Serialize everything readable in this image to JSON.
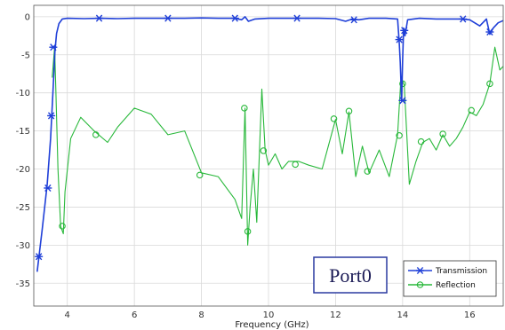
{
  "chart_data": {
    "type": "line",
    "title": "",
    "xlabel": "Frequency (GHz)",
    "ylabel": "",
    "xlim": [
      3,
      17
    ],
    "ylim": [
      -38,
      1.5
    ],
    "x_ticks": [
      4,
      6,
      8,
      10,
      12,
      14,
      16
    ],
    "y_ticks": [
      0,
      -5,
      -10,
      -15,
      -20,
      -25,
      -30,
      -35
    ],
    "grid": true,
    "legend_position": "bottom-right",
    "annotation": "Port0",
    "series": [
      {
        "name": "Transmission",
        "color": "#1f3fd8",
        "marker": "asterisk",
        "x": [
          3.1,
          3.25,
          3.4,
          3.5,
          3.57,
          3.63,
          3.68,
          3.75,
          3.85,
          4.0,
          4.5,
          5.0,
          5.5,
          6.0,
          6.5,
          7.0,
          7.5,
          8.0,
          8.5,
          9.0,
          9.2,
          9.3,
          9.4,
          9.6,
          10.0,
          10.5,
          10.85,
          11.5,
          12.0,
          12.3,
          12.5,
          12.7,
          13.0,
          13.5,
          13.85,
          13.9,
          13.93,
          13.97,
          14.0,
          14.03,
          14.07,
          14.15,
          14.5,
          15.0,
          15.5,
          15.75,
          16.0,
          16.3,
          16.5,
          16.6,
          16.7,
          16.85,
          17.0
        ],
        "y": [
          -33.5,
          -28.0,
          -22.0,
          -16.0,
          -10.0,
          -4.5,
          -2.2,
          -0.9,
          -0.3,
          -0.2,
          -0.25,
          -0.2,
          -0.25,
          -0.2,
          -0.2,
          -0.2,
          -0.2,
          -0.15,
          -0.2,
          -0.2,
          -0.4,
          0.0,
          -0.6,
          -0.3,
          -0.2,
          -0.2,
          -0.2,
          -0.2,
          -0.25,
          -0.6,
          -0.3,
          -0.4,
          -0.2,
          -0.2,
          -0.3,
          -3.5,
          -6.0,
          -11.0,
          -5.5,
          -1.5,
          -2.5,
          -0.4,
          -0.2,
          -0.3,
          -0.3,
          -0.3,
          -0.4,
          -1.2,
          -0.3,
          -2.3,
          -1.5,
          -0.8,
          -0.5
        ],
        "marker_x": [
          3.15,
          3.42,
          3.52,
          3.58,
          4.95,
          7.0,
          9.0,
          10.85,
          12.55,
          13.9,
          14.0,
          14.05,
          15.8,
          16.6
        ],
        "marker_y": [
          -31.5,
          -22.5,
          -13.0,
          -4.0,
          -0.2,
          -0.2,
          -0.2,
          -0.2,
          -0.4,
          -3.0,
          -11.0,
          -1.8,
          -0.3,
          -2.0
        ]
      },
      {
        "name": "Reflection",
        "color": "#28b83a",
        "marker": "circle",
        "x": [
          3.55,
          3.62,
          3.66,
          3.72,
          3.8,
          3.88,
          3.93,
          4.1,
          4.4,
          4.8,
          5.2,
          5.5,
          6.0,
          6.5,
          7.0,
          7.5,
          8.0,
          8.5,
          9.0,
          9.2,
          9.3,
          9.38,
          9.45,
          9.55,
          9.65,
          9.8,
          9.9,
          10.0,
          10.2,
          10.4,
          10.6,
          10.9,
          11.2,
          11.6,
          12.0,
          12.2,
          12.4,
          12.6,
          12.8,
          13.0,
          13.3,
          13.6,
          13.85,
          13.95,
          14.05,
          14.2,
          14.4,
          14.6,
          14.8,
          15.0,
          15.2,
          15.4,
          15.6,
          15.8,
          16.0,
          16.2,
          16.4,
          16.6,
          16.75,
          16.9,
          17.0
        ],
        "y": [
          -8.0,
          -4.0,
          -10.0,
          -20.0,
          -27.5,
          -28.5,
          -23.0,
          -16.0,
          -13.2,
          -15.0,
          -16.5,
          -14.5,
          -12.0,
          -12.8,
          -15.5,
          -15.0,
          -20.5,
          -21.0,
          -24.0,
          -26.5,
          -12.0,
          -30.0,
          -25.0,
          -20.0,
          -27.0,
          -9.5,
          -17.5,
          -19.5,
          -18.0,
          -20.0,
          -19.0,
          -19.0,
          -19.5,
          -20.0,
          -13.5,
          -18.0,
          -12.5,
          -21.0,
          -17.0,
          -20.5,
          -17.5,
          -21.0,
          -15.5,
          -8.0,
          -9.0,
          -22.0,
          -19.0,
          -16.5,
          -16.0,
          -17.5,
          -15.5,
          -17.0,
          -16.0,
          -14.5,
          -12.5,
          -13.0,
          -11.5,
          -8.8,
          -4.0,
          -7.0,
          -6.5
        ],
        "marker_x": [
          3.85,
          4.85,
          7.95,
          9.28,
          9.38,
          9.85,
          10.8,
          11.95,
          12.4,
          12.95,
          13.9,
          14.0,
          14.55,
          15.2,
          16.05,
          16.6
        ],
        "marker_y": [
          -27.5,
          -15.5,
          -20.8,
          -12.0,
          -28.2,
          -17.6,
          -19.4,
          -13.4,
          -12.4,
          -20.3,
          -15.6,
          -8.8,
          -16.4,
          -15.4,
          -12.3,
          -8.8
        ]
      }
    ]
  }
}
